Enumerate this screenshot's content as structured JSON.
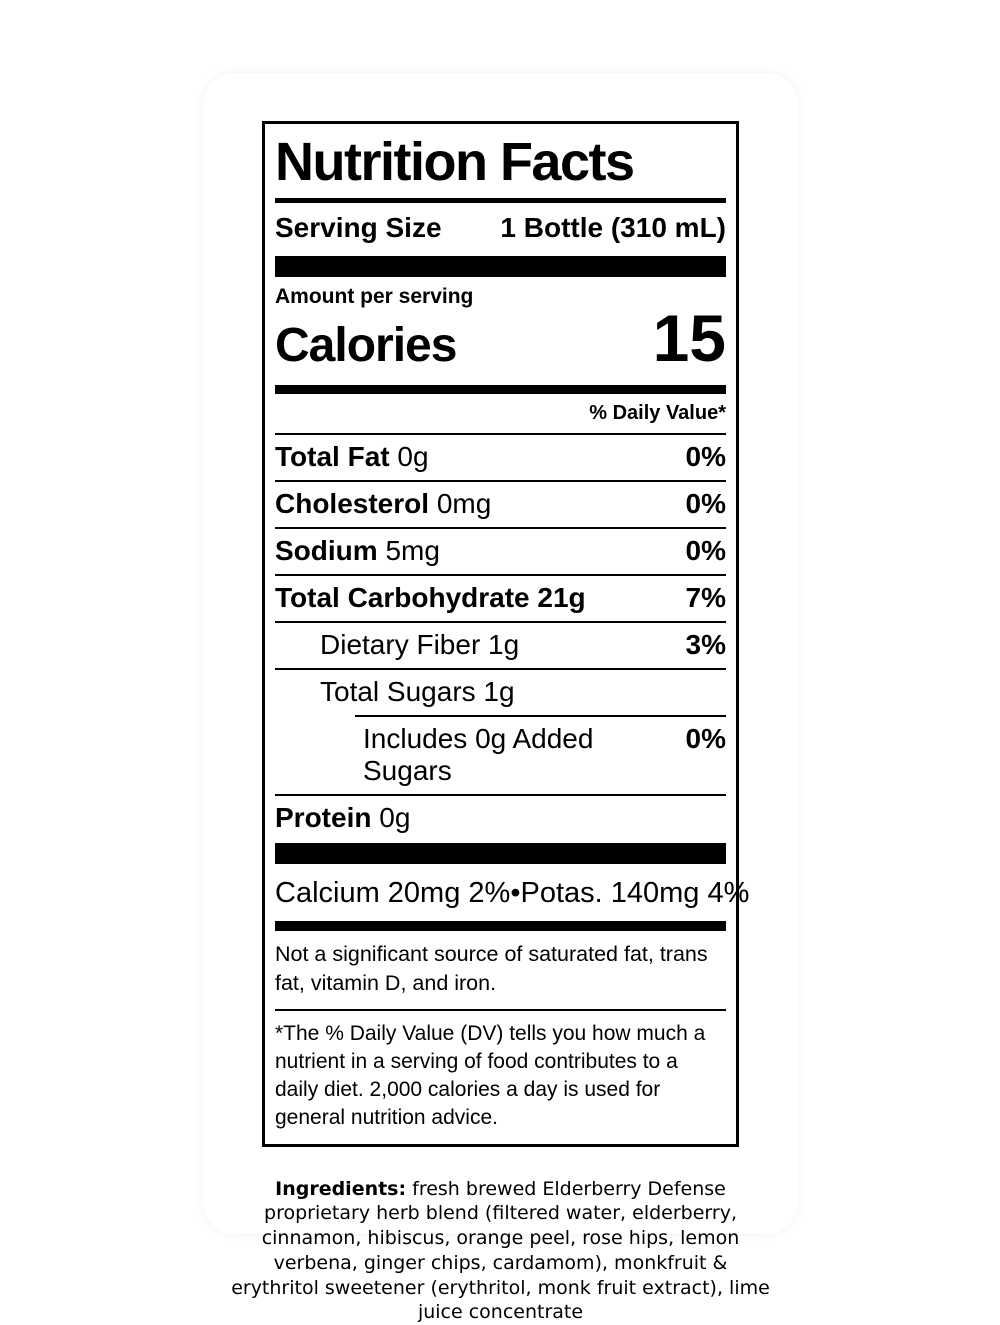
{
  "label": {
    "title": "Nutrition Facts",
    "serving": {
      "label": "Serving Size",
      "value": "1 Bottle (310 mL)"
    },
    "amount_per_serving": "Amount per serving",
    "calories_label": "Calories",
    "calories_value": "15",
    "daily_value_header": "% Daily Value*",
    "rows": [
      {
        "name": "Total Fat",
        "amount": "0g",
        "dv": "0%"
      },
      {
        "name": "Cholesterol",
        "amount": "0mg",
        "dv": "0%"
      },
      {
        "name": "Sodium",
        "amount": "5mg",
        "dv": "0%"
      },
      {
        "name": "Total Carbohydrate",
        "amount": "21g",
        "dv": "7%"
      },
      {
        "name": "Dietary Fiber",
        "amount": "1g",
        "dv": "3%"
      },
      {
        "name": "Total Sugars",
        "amount": "1g",
        "dv": ""
      },
      {
        "name": "Includes 0g Added Sugars",
        "amount": "",
        "dv": "0%"
      },
      {
        "name": "Protein",
        "amount": "0g",
        "dv": ""
      }
    ],
    "minerals": {
      "calcium": "Calcium 20mg 2%",
      "bullet": "•",
      "potassium": "Potas. 140mg 4%"
    },
    "not_significant": "Not a significant source of saturated fat, trans fat, vitamin D, and iron.",
    "footnote": "*The % Daily Value (DV) tells you how much a nutrient in a serving of food contributes to a daily diet. 2,000 calories a day is used for general nutrition advice."
  },
  "ingredients": {
    "label": "Ingredients:",
    "text": "fresh brewed Elderberry Defense proprietary herb blend (filtered water, elderberry, cinnamon, hibiscus, orange peel, rose hips, lemon verbena, ginger chips, cardamom), monkfruit & erythritol sweetener (erythritol, monk fruit extract), lime juice concentrate"
  },
  "colors": {
    "card_bg": "#ffffff",
    "text": "#000000",
    "rule": "#000000"
  }
}
